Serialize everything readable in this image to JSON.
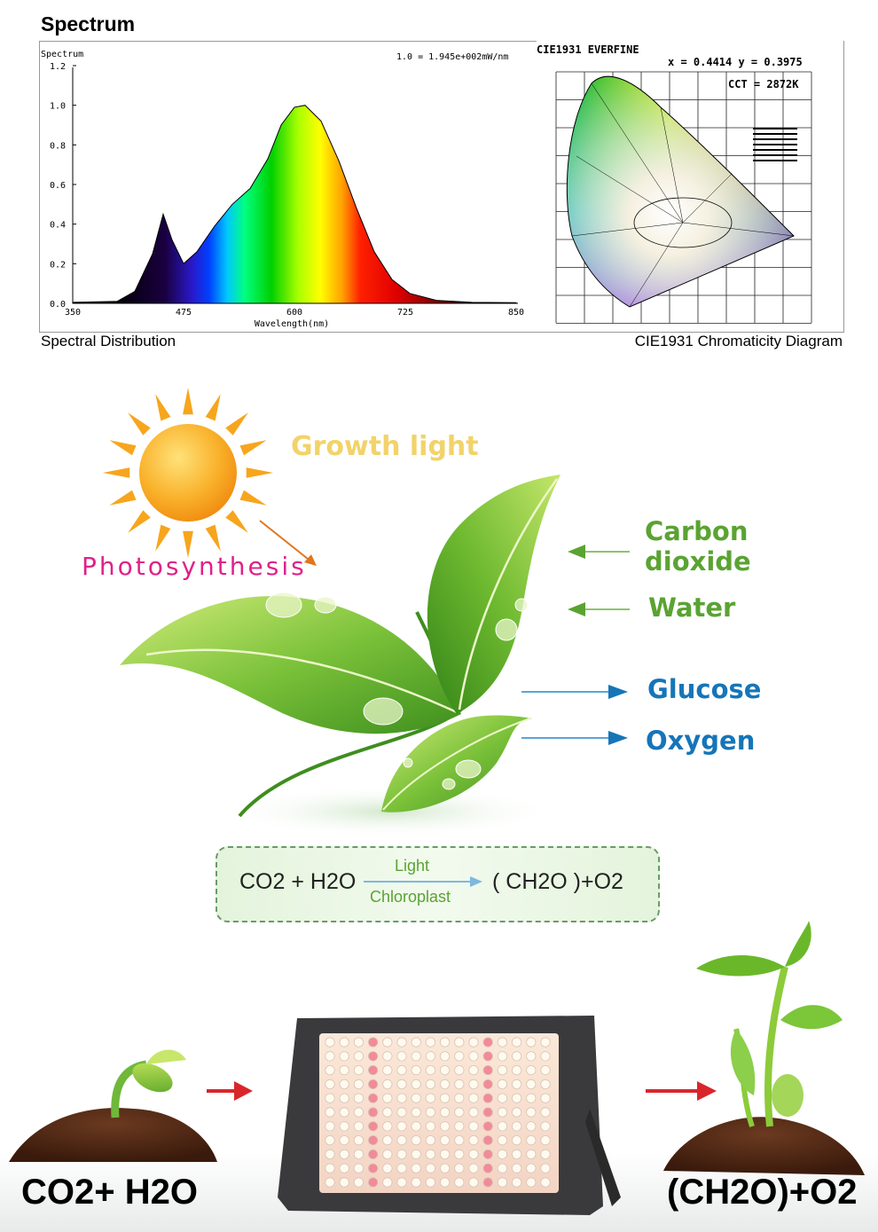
{
  "spectrum_section": {
    "title": "Spectrum",
    "spectral_caption": "Spectral Distribution",
    "cie_caption": "CIE1931 Chromaticity Diagram"
  },
  "spectrum_chart": {
    "inner_title": "Spectrum",
    "scale_note": "1.0 = 1.945e+002mW/nm",
    "xlabel": "Wavelength(nm)",
    "x_ticks": [
      "350",
      "475",
      "600",
      "725",
      "850"
    ],
    "y_ticks": [
      "0.0",
      "0.2",
      "0.4",
      "0.6",
      "0.8",
      "1.0",
      "1.2"
    ],
    "xlim": [
      350,
      850
    ],
    "ylim": [
      0,
      1.2
    ],
    "curve": [
      [
        350,
        0.005
      ],
      [
        400,
        0.01
      ],
      [
        420,
        0.06
      ],
      [
        440,
        0.25
      ],
      [
        452,
        0.45
      ],
      [
        462,
        0.32
      ],
      [
        475,
        0.2
      ],
      [
        490,
        0.26
      ],
      [
        510,
        0.39
      ],
      [
        530,
        0.5
      ],
      [
        550,
        0.58
      ],
      [
        570,
        0.73
      ],
      [
        585,
        0.9
      ],
      [
        600,
        0.99
      ],
      [
        612,
        1.0
      ],
      [
        630,
        0.92
      ],
      [
        650,
        0.72
      ],
      [
        670,
        0.48
      ],
      [
        690,
        0.26
      ],
      [
        710,
        0.12
      ],
      [
        730,
        0.05
      ],
      [
        760,
        0.015
      ],
      [
        800,
        0.005
      ],
      [
        850,
        0.003
      ]
    ]
  },
  "cie_chart": {
    "title": "CIE1931   EVERFINE",
    "xy_readout": "x = 0.4414  y = 0.3975",
    "cct_readout": "CCT = 2872K"
  },
  "photosynthesis": {
    "growth_light": "Growth light",
    "photosynthesis_label": "Photosynthesis",
    "inputs": [
      "Carbon dioxide",
      "Water"
    ],
    "outputs": [
      "Glucose",
      "Oxygen"
    ],
    "equation": {
      "left": "CO2 + H2O",
      "over_arrow": "Light",
      "under_arrow": "Chloroplast",
      "right": "( CH2O )+O2"
    }
  },
  "bottom": {
    "left_label": "CO2+ H2O",
    "right_label": "(CH2O)+O2"
  },
  "colors": {
    "green_text": "#5aa332",
    "blue_text": "#1675b8",
    "magenta_text": "#e0218a",
    "arrow_red": "#d9262b",
    "sun_orange": "#f7a51c"
  }
}
